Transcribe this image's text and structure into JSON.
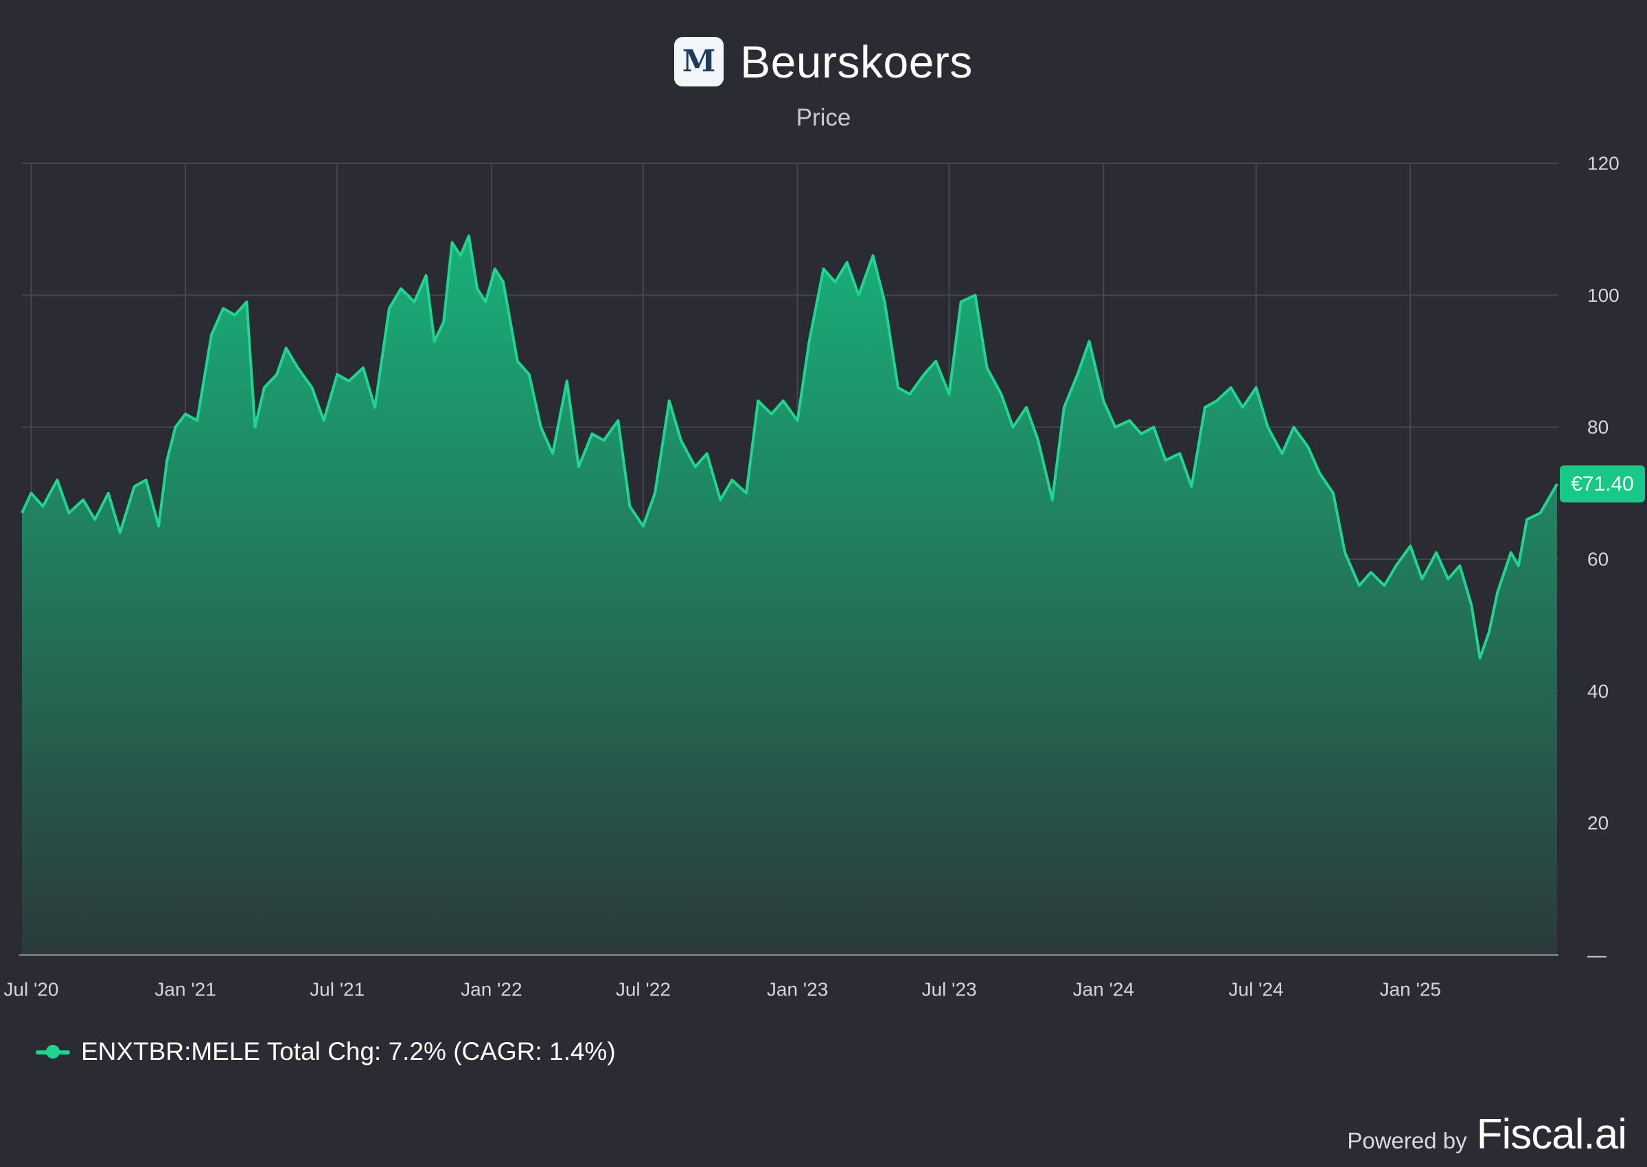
{
  "header": {
    "logo_letter": "M",
    "title": "Beurskoers",
    "subtitle": "Price"
  },
  "legend": {
    "label": "ENXTBR:MELE Total Chg: 7.2% (CAGR: 1.4%)"
  },
  "footer": {
    "powered_text": "Powered by",
    "brand": "Fiscal.ai"
  },
  "colors": {
    "background": "#2b2c33",
    "line": "#1ed68f",
    "fill_top": "#19b07a",
    "fill_bottom": "#2b3a3a",
    "grid": "#45464f",
    "badge_bg": "#17c886"
  },
  "chart_data": {
    "type": "area",
    "title": "Beurskoers",
    "subtitle": "Price",
    "y_axis_position": "right",
    "ylim": [
      0,
      120
    ],
    "yticks": [
      {
        "value": 0,
        "label": "—"
      },
      {
        "value": 20,
        "label": "20"
      },
      {
        "value": 40,
        "label": "40"
      },
      {
        "value": 60,
        "label": "60"
      },
      {
        "value": 80,
        "label": "80"
      },
      {
        "value": 100,
        "label": "100"
      },
      {
        "value": 120,
        "label": "120"
      }
    ],
    "xlim": [
      "2020-06-20",
      "2025-06-25"
    ],
    "xticks": [
      {
        "date": "2020-07-01",
        "label": "Jul '20"
      },
      {
        "date": "2021-01-01",
        "label": "Jan '21"
      },
      {
        "date": "2021-07-01",
        "label": "Jul '21"
      },
      {
        "date": "2022-01-01",
        "label": "Jan '22"
      },
      {
        "date": "2022-07-01",
        "label": "Jul '22"
      },
      {
        "date": "2023-01-01",
        "label": "Jan '23"
      },
      {
        "date": "2023-07-01",
        "label": "Jul '23"
      },
      {
        "date": "2024-01-01",
        "label": "Jan '24"
      },
      {
        "date": "2024-07-01",
        "label": "Jul '24"
      },
      {
        "date": "2025-01-01",
        "label": "Jan '25"
      }
    ],
    "grid": true,
    "last_value_label": "€71.40",
    "series": [
      {
        "name": "ENXTBR:MELE",
        "points": [
          [
            "2020-06-20",
            67
          ],
          [
            "2020-07-01",
            70
          ],
          [
            "2020-07-15",
            68
          ],
          [
            "2020-08-01",
            72
          ],
          [
            "2020-08-15",
            67
          ],
          [
            "2020-09-01",
            69
          ],
          [
            "2020-09-15",
            66
          ],
          [
            "2020-10-01",
            70
          ],
          [
            "2020-10-15",
            64
          ],
          [
            "2020-11-01",
            71
          ],
          [
            "2020-11-15",
            72
          ],
          [
            "2020-11-30",
            65
          ],
          [
            "2020-12-10",
            75
          ],
          [
            "2020-12-20",
            80
          ],
          [
            "2021-01-01",
            82
          ],
          [
            "2021-01-15",
            81
          ],
          [
            "2021-02-01",
            94
          ],
          [
            "2021-02-15",
            98
          ],
          [
            "2021-03-01",
            97
          ],
          [
            "2021-03-15",
            99
          ],
          [
            "2021-03-25",
            80
          ],
          [
            "2021-04-05",
            86
          ],
          [
            "2021-04-20",
            88
          ],
          [
            "2021-05-01",
            92
          ],
          [
            "2021-05-15",
            89
          ],
          [
            "2021-06-01",
            86
          ],
          [
            "2021-06-15",
            81
          ],
          [
            "2021-07-01",
            88
          ],
          [
            "2021-07-15",
            87
          ],
          [
            "2021-08-01",
            89
          ],
          [
            "2021-08-15",
            83
          ],
          [
            "2021-09-01",
            98
          ],
          [
            "2021-09-15",
            101
          ],
          [
            "2021-10-01",
            99
          ],
          [
            "2021-10-15",
            103
          ],
          [
            "2021-10-25",
            93
          ],
          [
            "2021-11-05",
            96
          ],
          [
            "2021-11-15",
            108
          ],
          [
            "2021-11-25",
            106
          ],
          [
            "2021-12-05",
            109
          ],
          [
            "2021-12-15",
            101
          ],
          [
            "2021-12-25",
            99
          ],
          [
            "2022-01-05",
            104
          ],
          [
            "2022-01-15",
            102
          ],
          [
            "2022-02-01",
            90
          ],
          [
            "2022-02-15",
            88
          ],
          [
            "2022-03-01",
            80
          ],
          [
            "2022-03-15",
            76
          ],
          [
            "2022-04-01",
            87
          ],
          [
            "2022-04-15",
            74
          ],
          [
            "2022-05-01",
            79
          ],
          [
            "2022-05-15",
            78
          ],
          [
            "2022-06-01",
            81
          ],
          [
            "2022-06-15",
            68
          ],
          [
            "2022-07-01",
            65
          ],
          [
            "2022-07-15",
            70
          ],
          [
            "2022-08-01",
            84
          ],
          [
            "2022-08-15",
            78
          ],
          [
            "2022-09-01",
            74
          ],
          [
            "2022-09-15",
            76
          ],
          [
            "2022-10-01",
            69
          ],
          [
            "2022-10-15",
            72
          ],
          [
            "2022-11-01",
            70
          ],
          [
            "2022-11-15",
            84
          ],
          [
            "2022-12-01",
            82
          ],
          [
            "2022-12-15",
            84
          ],
          [
            "2023-01-01",
            81
          ],
          [
            "2023-01-15",
            93
          ],
          [
            "2023-02-01",
            104
          ],
          [
            "2023-02-15",
            102
          ],
          [
            "2023-03-01",
            105
          ],
          [
            "2023-03-15",
            100
          ],
          [
            "2023-04-01",
            106
          ],
          [
            "2023-04-15",
            99
          ],
          [
            "2023-05-01",
            86
          ],
          [
            "2023-05-15",
            85
          ],
          [
            "2023-06-01",
            88
          ],
          [
            "2023-06-15",
            90
          ],
          [
            "2023-07-01",
            85
          ],
          [
            "2023-07-15",
            99
          ],
          [
            "2023-08-01",
            100
          ],
          [
            "2023-08-15",
            89
          ],
          [
            "2023-09-01",
            85
          ],
          [
            "2023-09-15",
            80
          ],
          [
            "2023-10-01",
            83
          ],
          [
            "2023-10-15",
            78
          ],
          [
            "2023-11-01",
            69
          ],
          [
            "2023-11-15",
            83
          ],
          [
            "2023-12-01",
            88
          ],
          [
            "2023-12-15",
            93
          ],
          [
            "2024-01-01",
            84
          ],
          [
            "2024-01-15",
            80
          ],
          [
            "2024-02-01",
            81
          ],
          [
            "2024-02-15",
            79
          ],
          [
            "2024-03-01",
            80
          ],
          [
            "2024-03-15",
            75
          ],
          [
            "2024-04-01",
            76
          ],
          [
            "2024-04-15",
            71
          ],
          [
            "2024-05-01",
            83
          ],
          [
            "2024-05-15",
            84
          ],
          [
            "2024-06-01",
            86
          ],
          [
            "2024-06-15",
            83
          ],
          [
            "2024-07-01",
            86
          ],
          [
            "2024-07-15",
            80
          ],
          [
            "2024-08-01",
            76
          ],
          [
            "2024-08-15",
            80
          ],
          [
            "2024-09-01",
            77
          ],
          [
            "2024-09-15",
            73
          ],
          [
            "2024-10-01",
            70
          ],
          [
            "2024-10-15",
            61
          ],
          [
            "2024-11-01",
            56
          ],
          [
            "2024-11-15",
            58
          ],
          [
            "2024-12-01",
            56
          ],
          [
            "2024-12-15",
            59
          ],
          [
            "2025-01-01",
            62
          ],
          [
            "2025-01-15",
            57
          ],
          [
            "2025-02-01",
            61
          ],
          [
            "2025-02-15",
            57
          ],
          [
            "2025-03-01",
            59
          ],
          [
            "2025-03-15",
            53
          ],
          [
            "2025-03-25",
            45
          ],
          [
            "2025-04-05",
            49
          ],
          [
            "2025-04-15",
            55
          ],
          [
            "2025-05-01",
            61
          ],
          [
            "2025-05-10",
            59
          ],
          [
            "2025-05-20",
            66
          ],
          [
            "2025-06-05",
            67
          ],
          [
            "2025-06-25",
            71.4
          ]
        ]
      }
    ]
  }
}
